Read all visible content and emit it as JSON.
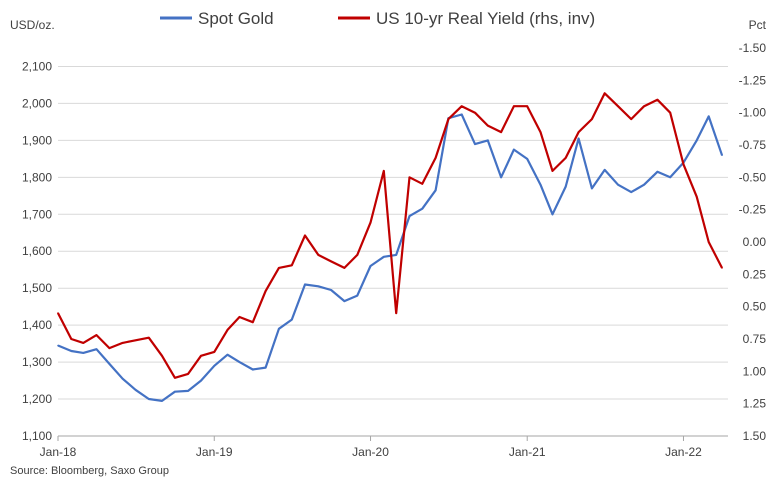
{
  "chart_data": {
    "type": "line",
    "left_axis_label": "USD/oz.",
    "right_axis_label": "Pct",
    "source": "Source: Bloomberg, Saxo Group",
    "x_ticks": [
      "Jan-18",
      "Jan-19",
      "Jan-20",
      "Jan-21",
      "Jan-22"
    ],
    "left_ylim": [
      1100,
      2150
    ],
    "left_ticks": [
      "1,100",
      "1,200",
      "1,300",
      "1,400",
      "1,500",
      "1,600",
      "1,700",
      "1,800",
      "1,900",
      "2,000",
      "2,100"
    ],
    "right_ylim": [
      1.5,
      -1.5
    ],
    "right_inverted": true,
    "right_ticks": [
      "1.50",
      "1.25",
      "1.00",
      "0.75",
      "0.50",
      "0.25",
      "0.00",
      "-0.25",
      "-0.50",
      "-0.75",
      "-1.00",
      "-1.25",
      "-1.50"
    ],
    "grid": "horizontal",
    "legend_position": "top",
    "series": [
      {
        "name": "Spot Gold",
        "axis": "left",
        "color": "#4472c4",
        "x": [
          "2018-01",
          "2018-02",
          "2018-03",
          "2018-04",
          "2018-05",
          "2018-06",
          "2018-07",
          "2018-08",
          "2018-09",
          "2018-10",
          "2018-11",
          "2018-12",
          "2019-01",
          "2019-02",
          "2019-03",
          "2019-04",
          "2019-05",
          "2019-06",
          "2019-07",
          "2019-08",
          "2019-09",
          "2019-10",
          "2019-11",
          "2019-12",
          "2020-01",
          "2020-02",
          "2020-03",
          "2020-04",
          "2020-05",
          "2020-06",
          "2020-07",
          "2020-08",
          "2020-09",
          "2020-10",
          "2020-11",
          "2020-12",
          "2021-01",
          "2021-02",
          "2021-03",
          "2021-04",
          "2021-05",
          "2021-06",
          "2021-07",
          "2021-08",
          "2021-09",
          "2021-10",
          "2021-11",
          "2021-12",
          "2022-01",
          "2022-02",
          "2022-03",
          "2022-04"
        ],
        "values": [
          1345,
          1330,
          1325,
          1335,
          1295,
          1255,
          1225,
          1200,
          1195,
          1220,
          1222,
          1250,
          1290,
          1320,
          1300,
          1280,
          1285,
          1390,
          1415,
          1510,
          1505,
          1495,
          1465,
          1480,
          1560,
          1585,
          1590,
          1695,
          1715,
          1765,
          1960,
          1970,
          1890,
          1900,
          1800,
          1875,
          1850,
          1780,
          1700,
          1775,
          1905,
          1770,
          1820,
          1780,
          1760,
          1780,
          1815,
          1800,
          1840,
          1900,
          1965,
          1860
        ]
      },
      {
        "name": "US 10-yr Real Yield (rhs, inv)",
        "axis": "right",
        "color": "#c00000",
        "x": [
          "2018-01",
          "2018-02",
          "2018-03",
          "2018-04",
          "2018-05",
          "2018-06",
          "2018-07",
          "2018-08",
          "2018-09",
          "2018-10",
          "2018-11",
          "2018-12",
          "2019-01",
          "2019-02",
          "2019-03",
          "2019-04",
          "2019-05",
          "2019-06",
          "2019-07",
          "2019-08",
          "2019-09",
          "2019-10",
          "2019-11",
          "2019-12",
          "2020-01",
          "2020-02",
          "2020-03",
          "2020-04",
          "2020-05",
          "2020-06",
          "2020-07",
          "2020-08",
          "2020-09",
          "2020-10",
          "2020-11",
          "2020-12",
          "2021-01",
          "2021-02",
          "2021-03",
          "2021-04",
          "2021-05",
          "2021-06",
          "2021-07",
          "2021-08",
          "2021-09",
          "2021-10",
          "2021-11",
          "2021-12",
          "2022-01",
          "2022-02",
          "2022-03",
          "2022-04"
        ],
        "values": [
          0.55,
          0.75,
          0.78,
          0.72,
          0.82,
          0.78,
          0.76,
          0.74,
          0.88,
          1.05,
          1.02,
          0.88,
          0.85,
          0.68,
          0.58,
          0.62,
          0.38,
          0.2,
          0.18,
          -0.05,
          0.1,
          0.15,
          0.2,
          0.1,
          -0.15,
          -0.55,
          0.55,
          -0.5,
          -0.45,
          -0.65,
          -0.95,
          -1.05,
          -1.0,
          -0.9,
          -0.85,
          -1.05,
          -1.05,
          -0.85,
          -0.55,
          -0.65,
          -0.85,
          -0.95,
          -1.15,
          -1.05,
          -0.95,
          -1.05,
          -1.1,
          -1.0,
          -0.6,
          -0.35,
          0.0,
          0.2
        ]
      }
    ]
  }
}
